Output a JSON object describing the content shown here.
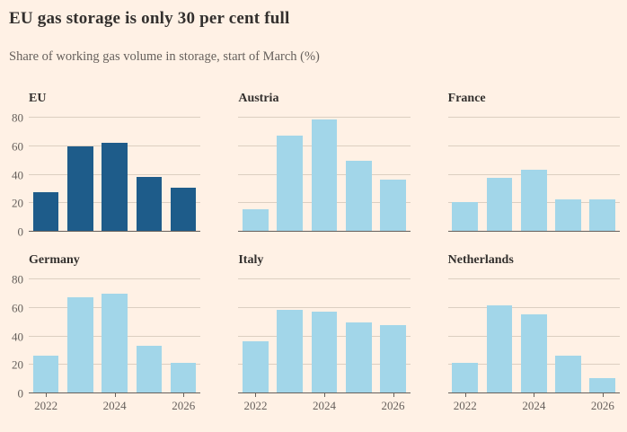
{
  "header": {
    "title": "EU gas storage is only 30 per cent full",
    "subtitle": "Share of working gas volume in storage, start of March (%)"
  },
  "colors": {
    "background": "#FFF1E5",
    "bar_highlight": "#1E5C8A",
    "bar_default": "#A2D6E9",
    "gridline": "#DCCFC1",
    "axis_line": "#66605C",
    "axis_text": "#66605C",
    "title_text": "#33302E"
  },
  "chart_data": {
    "type": "bar",
    "title": "EU gas storage is only 30 per cent full",
    "subtitle": "Share of working gas volume in storage, start of March (%)",
    "unit": "%",
    "x": [
      2022,
      2023,
      2024,
      2025,
      2026
    ],
    "x_tick_labels": [
      "2022",
      "2024",
      "2026"
    ],
    "x_tick_slots": [
      0,
      2,
      4
    ],
    "ylim": [
      0,
      80
    ],
    "y_ticks": [
      0,
      20,
      40,
      60,
      80
    ],
    "grid": true,
    "legend_position": "none",
    "layout": "small-multiples 3x2",
    "panels": [
      {
        "name": "EU",
        "highlight": true,
        "values": [
          27,
          59,
          62,
          38,
          30
        ]
      },
      {
        "name": "Austria",
        "highlight": false,
        "values": [
          15,
          67,
          78,
          49,
          36
        ]
      },
      {
        "name": "France",
        "highlight": false,
        "values": [
          20,
          37,
          43,
          22,
          22
        ]
      },
      {
        "name": "Germany",
        "highlight": false,
        "values": [
          26,
          67,
          69,
          33,
          21
        ]
      },
      {
        "name": "Italy",
        "highlight": false,
        "values": [
          36,
          58,
          57,
          49,
          47
        ]
      },
      {
        "name": "Netherlands",
        "highlight": false,
        "values": [
          21,
          61,
          55,
          26,
          10
        ]
      }
    ]
  }
}
